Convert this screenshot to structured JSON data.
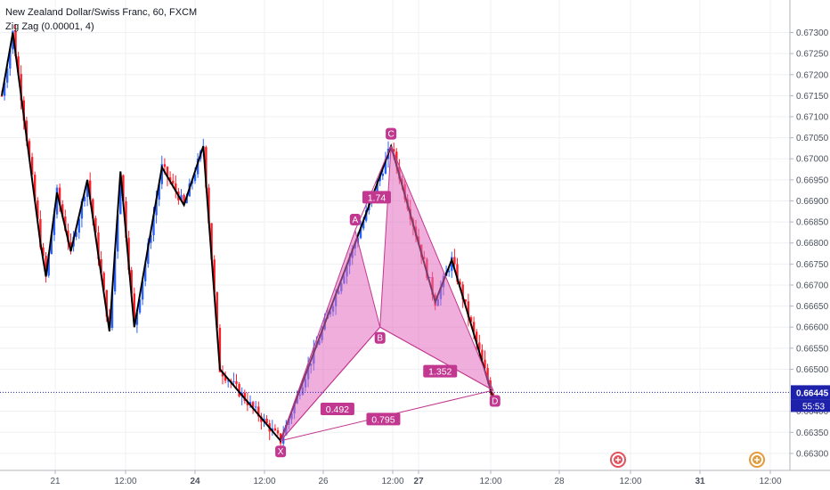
{
  "header": {
    "title": "New Zealand Dollar/Swiss Franc, 60, FXCM",
    "indicator": "Zig Zag (0.00001, 4)"
  },
  "price_axis": {
    "ticks": [
      "0.67300",
      "0.67250",
      "0.67200",
      "0.67150",
      "0.67100",
      "0.67050",
      "0.67000",
      "0.66950",
      "0.66900",
      "0.66850",
      "0.66800",
      "0.66750",
      "0.66700",
      "0.66650",
      "0.66600",
      "0.66550",
      "0.66500",
      "0.66400",
      "0.66350",
      "0.66300"
    ],
    "current_price": "0.66445",
    "countdown": "55:53"
  },
  "time_axis": {
    "ticks": [
      "21",
      "12:00",
      "24",
      "12:00",
      "26",
      "12:00",
      "27",
      "12:00",
      "28",
      "12:00",
      "31",
      "12:00"
    ]
  },
  "colors": {
    "up": "#2962ff",
    "down": "#ff1e28",
    "zigzag": "#000000",
    "pattern_fill": "#e16cbd",
    "pattern_stroke": "#c2378f",
    "label_bg": "#c2378f",
    "price_line": "#1e22aa",
    "grid": "#eef0f3",
    "event_icon": "#e0525c"
  },
  "chart_data": {
    "type": "candlestick",
    "title": "New Zealand Dollar/Swiss Franc, 60, FXCM",
    "ylim": [
      0.66285,
      0.67335
    ],
    "grid": true,
    "zigzag_pivots": [
      [
        0,
        0.6715
      ],
      [
        4,
        0.673
      ],
      [
        14,
        0.668
      ],
      [
        16,
        0.6672
      ],
      [
        20,
        0.6692
      ],
      [
        25,
        0.6678
      ],
      [
        31,
        0.6695
      ],
      [
        39,
        0.6659
      ],
      [
        43,
        0.6697
      ],
      [
        48,
        0.666
      ],
      [
        58,
        0.6698
      ],
      [
        66,
        0.6689
      ],
      [
        73,
        0.6703
      ],
      [
        79,
        0.665
      ],
      [
        101,
        0.6633
      ],
      [
        128,
        0.668
      ],
      [
        141,
        0.6703
      ],
      [
        157,
        0.6666
      ],
      [
        163,
        0.6676
      ],
      [
        178,
        0.6643
      ]
    ],
    "harmonic_pattern": {
      "points": [
        {
          "label": "X",
          "price": 0.6633
        },
        {
          "label": "A",
          "price": 0.6683
        },
        {
          "label": "B",
          "price": 0.666
        },
        {
          "label": "C",
          "price": 0.6703
        },
        {
          "label": "D",
          "price": 0.6645
        }
      ],
      "ratios": [
        "0.492",
        "1.74",
        "1.352",
        "0.795"
      ]
    },
    "event_markers": 2
  }
}
